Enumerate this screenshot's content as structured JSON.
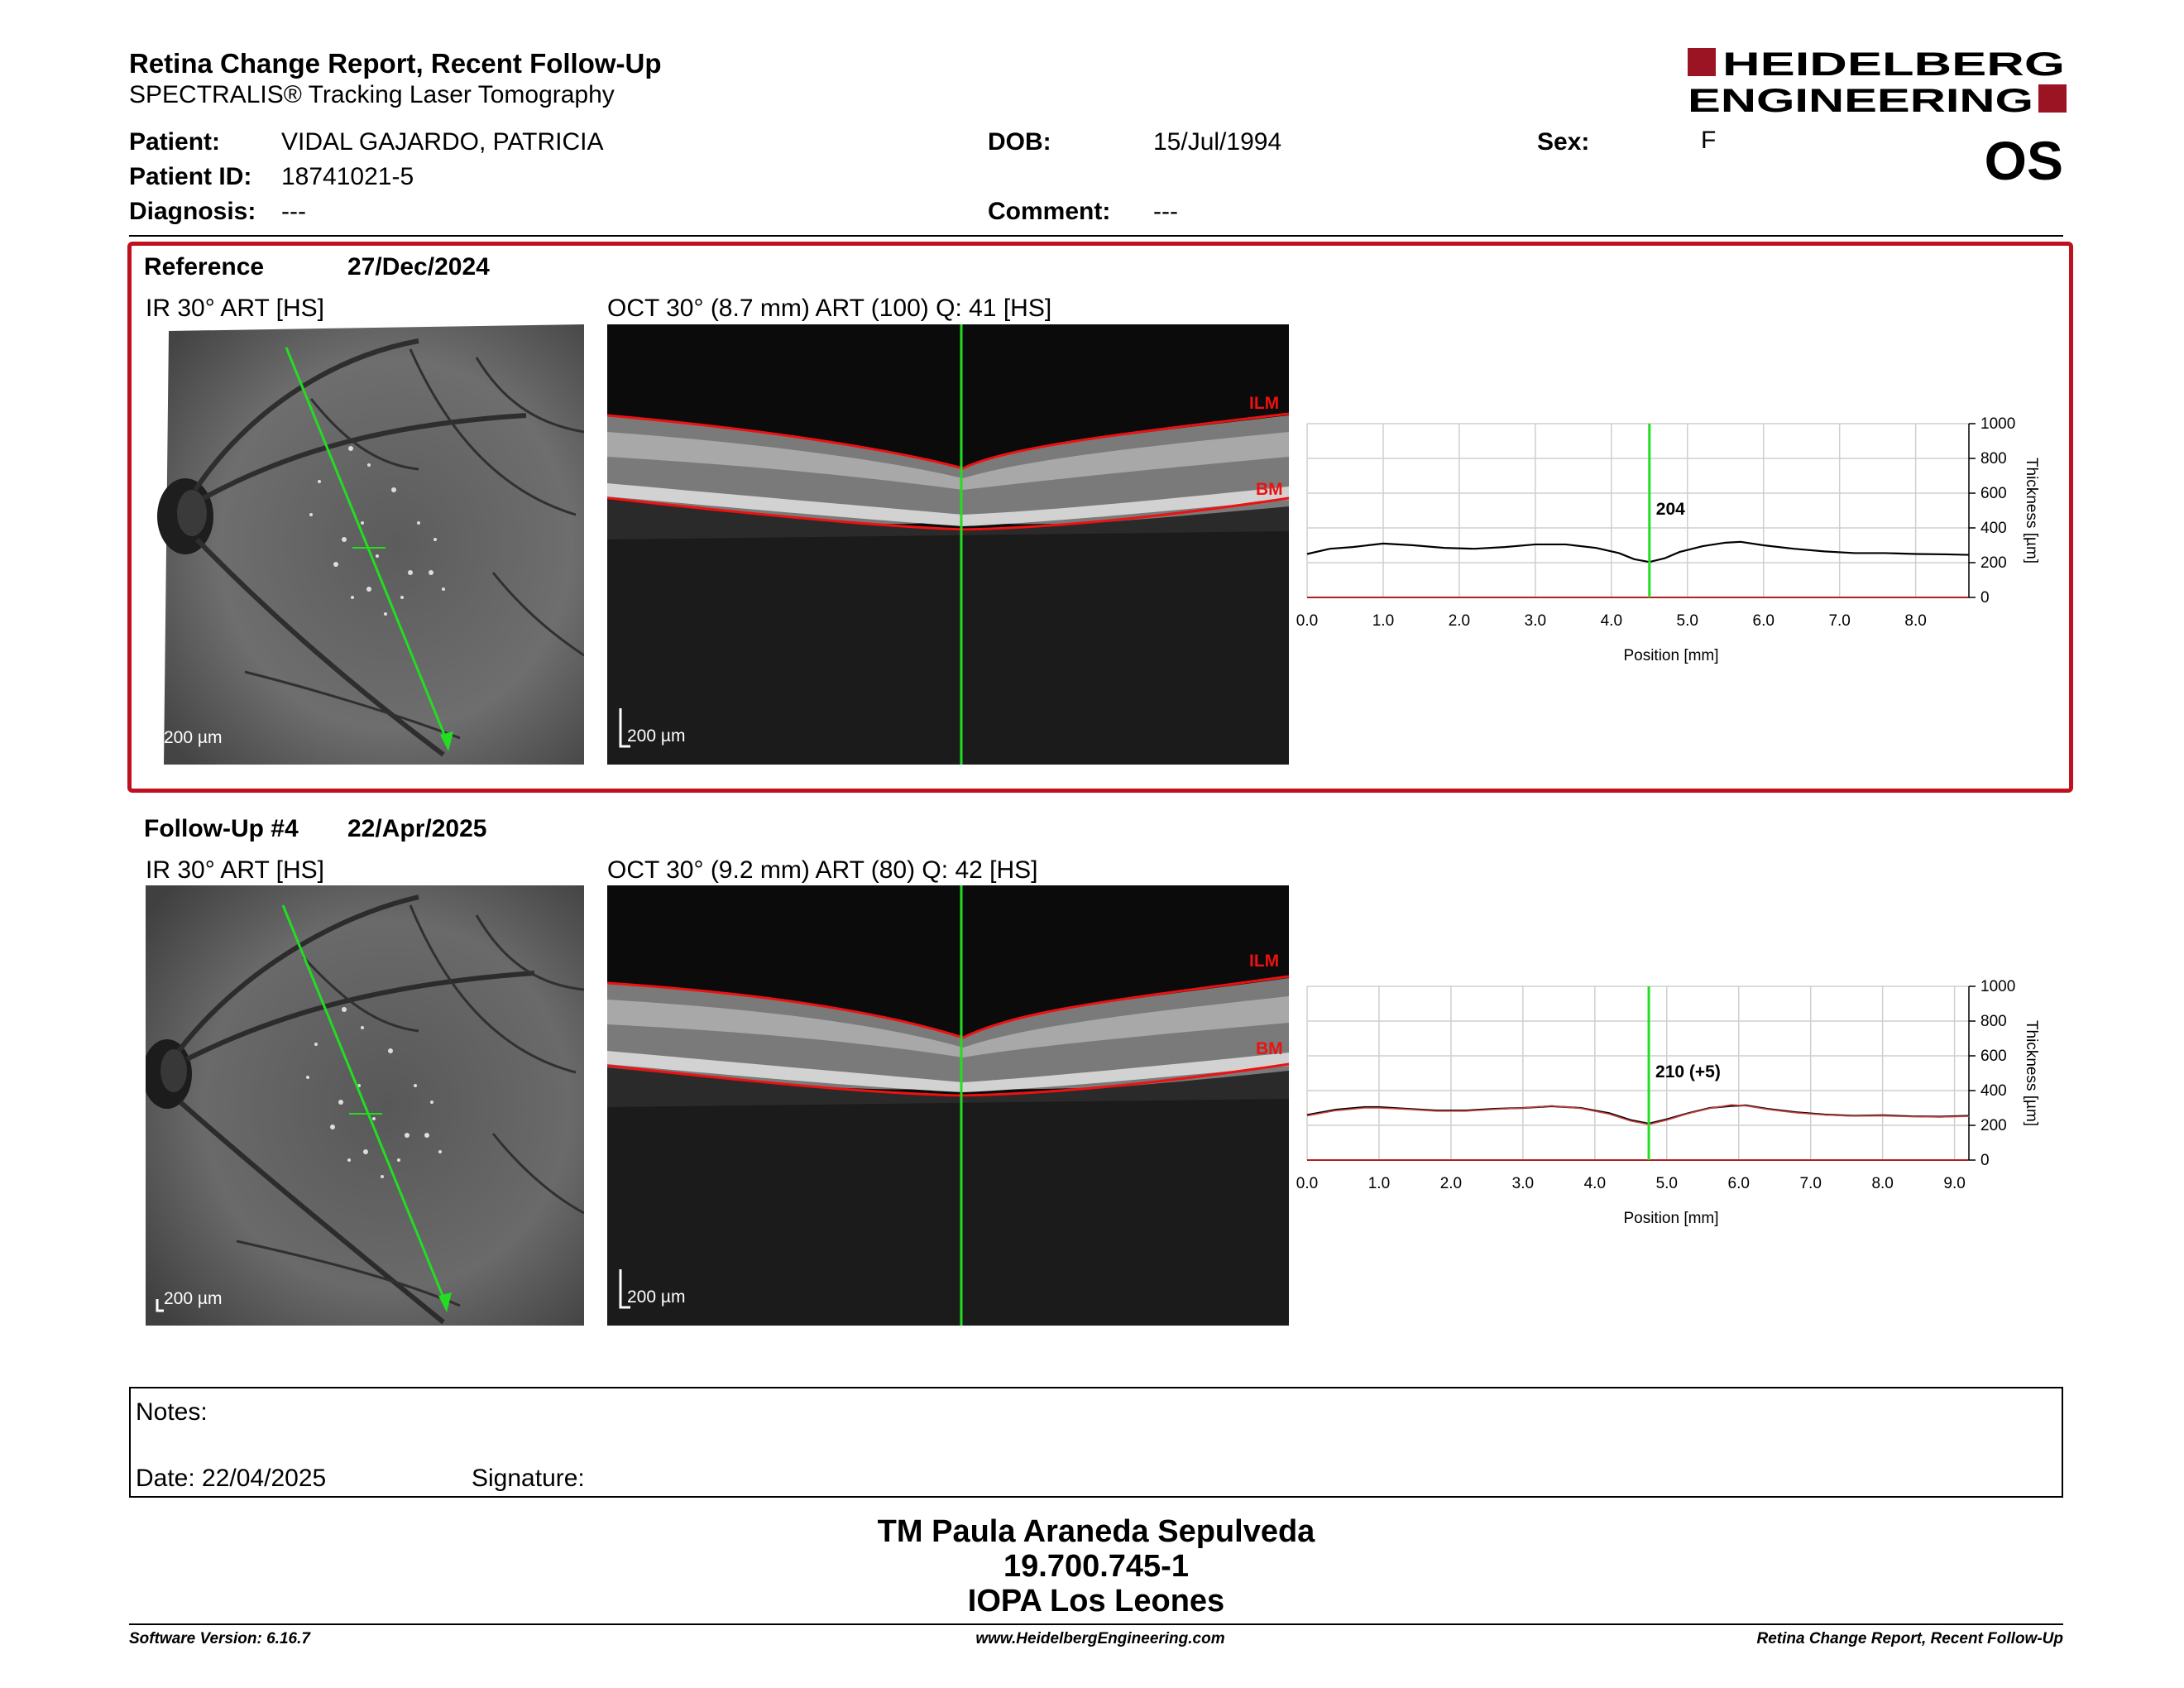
{
  "header": {
    "title": "Retina Change Report, Recent Follow-Up",
    "subtitle": "SPECTRALIS® Tracking Laser Tomography",
    "logo_line1": "HEIDELBERG",
    "logo_line2": "ENGINEERING",
    "eye": "OS"
  },
  "patient": {
    "patient_label": "Patient:",
    "patient_value": "VIDAL GAJARDO, PATRICIA",
    "id_label": "Patient ID:",
    "id_value": "18741021-5",
    "diagnosis_label": "Diagnosis:",
    "diagnosis_value": "---",
    "dob_label": "DOB:",
    "dob_value": "15/Jul/1994",
    "comment_label": "Comment:",
    "comment_value": "---",
    "sex_label": "Sex:",
    "sex_value": "F"
  },
  "reference": {
    "label": "Reference",
    "date": "27/Dec/2024",
    "ir_label": "IR 30° ART [HS]",
    "oct_label": "OCT 30° (8.7 mm) ART (100) Q: 41 [HS]",
    "ir_scale": "200 µm",
    "oct_scale": "200 µm",
    "ilm": "ILM",
    "bm": "BM"
  },
  "followup": {
    "label": "Follow-Up #4",
    "date": "22/Apr/2025",
    "ir_label": "IR 30° ART [HS]",
    "oct_label": "OCT 30° (9.2 mm) ART (80) Q: 42 [HS]",
    "ir_scale": "200 µm",
    "oct_scale": "200 µm",
    "ilm": "ILM",
    "bm": "BM"
  },
  "chart_data": [
    {
      "type": "line",
      "xlabel": "Position [mm]",
      "ylabel": "Thickness [µm]",
      "xlim": [
        0.0,
        8.7
      ],
      "ylim": [
        0,
        1000
      ],
      "x_ticks": [
        "0.0",
        "1.0",
        "2.0",
        "3.0",
        "4.0",
        "5.0",
        "6.0",
        "7.0",
        "8.0"
      ],
      "y_ticks": [
        "0",
        "200",
        "400",
        "600",
        "800",
        "1000"
      ],
      "grid": true,
      "marker_x": 4.5,
      "marker_label": "204",
      "series": [
        {
          "x": [
            0.0,
            0.3,
            0.6,
            1.0,
            1.4,
            1.8,
            2.2,
            2.6,
            3.0,
            3.4,
            3.8,
            4.1,
            4.3,
            4.5,
            4.7,
            4.9,
            5.2,
            5.5,
            5.7,
            6.0,
            6.4,
            6.8,
            7.2,
            7.6,
            8.0,
            8.4,
            8.7
          ],
          "values": [
            250,
            280,
            290,
            310,
            300,
            285,
            280,
            290,
            305,
            305,
            285,
            255,
            220,
            204,
            225,
            262,
            295,
            315,
            320,
            300,
            280,
            265,
            255,
            255,
            250,
            248,
            245
          ]
        }
      ]
    },
    {
      "type": "line",
      "xlabel": "Position [mm]",
      "ylabel": "Thickness [µm]",
      "xlim": [
        0.0,
        9.2
      ],
      "ylim": [
        0,
        1000
      ],
      "x_ticks": [
        "0.0",
        "1.0",
        "2.0",
        "3.0",
        "4.0",
        "5.0",
        "6.0",
        "7.0",
        "8.0",
        "9.0"
      ],
      "y_ticks": [
        "0",
        "200",
        "400",
        "600",
        "800",
        "1000"
      ],
      "grid": true,
      "marker_x": 4.75,
      "marker_label": "210 (+5)",
      "series": [
        {
          "x": [
            0.0,
            0.4,
            0.8,
            1.0,
            1.4,
            1.8,
            2.2,
            2.6,
            3.0,
            3.4,
            3.8,
            4.2,
            4.5,
            4.75,
            5.0,
            5.3,
            5.6,
            5.9,
            6.1,
            6.4,
            6.8,
            7.2,
            7.6,
            8.0,
            8.4,
            8.8,
            9.2
          ],
          "values": [
            260,
            290,
            305,
            305,
            295,
            285,
            285,
            295,
            300,
            310,
            300,
            270,
            230,
            210,
            235,
            270,
            300,
            312,
            315,
            295,
            275,
            262,
            255,
            258,
            252,
            250,
            255
          ]
        },
        {
          "x": [
            0.0,
            0.4,
            0.8,
            1.0,
            1.4,
            1.8,
            2.2,
            2.6,
            3.0,
            3.4,
            3.8,
            4.2,
            4.5,
            4.75,
            5.0,
            5.3,
            5.6,
            5.9,
            6.1,
            6.4,
            6.8,
            7.2,
            7.6,
            8.0,
            8.4,
            8.8,
            9.2
          ],
          "values": [
            255,
            285,
            300,
            300,
            292,
            282,
            282,
            292,
            300,
            312,
            298,
            265,
            225,
            205,
            230,
            268,
            298,
            318,
            312,
            292,
            272,
            260,
            253,
            255,
            250,
            248,
            252
          ],
          "color": "#cc4444"
        }
      ]
    }
  ],
  "notes": {
    "notes_label": "Notes:",
    "date_label": "Date: 22/04/2025",
    "signature_label": "Signature:"
  },
  "signer": {
    "name": "TM Paula Araneda Sepulveda",
    "id": "19.700.745-1",
    "org": "IOPA Los Leones"
  },
  "footer": {
    "version": "Software Version: 6.16.7",
    "url": "www.HeidelbergEngineering.com",
    "report": "Retina Change Report, Recent Follow-Up"
  },
  "colors": {
    "accent_red": "#c0101e",
    "scan_line_green": "#22dd22",
    "layer_red": "#ee1111"
  }
}
